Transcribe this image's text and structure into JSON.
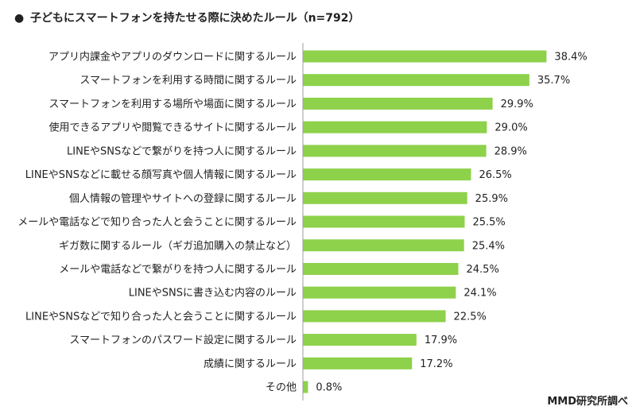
{
  "chart_data": {
    "type": "bar",
    "orientation": "horizontal",
    "title": "子どもにスマートフォンを持たせる際に決めたルール（n=792）",
    "bullet": "●",
    "source": "MMD研究所調べ",
    "value_suffix": "%",
    "bar_color": "#8ed14b",
    "axis_color": "#9e9e9e",
    "xlim": [
      0,
      100
    ],
    "categories": [
      "アプリ内課金やアプリのダウンロードに関するルール",
      "スマートフォンを利用する時間に関するルール",
      "スマートフォンを利用する場所や場面に関するルール",
      "使用できるアプリや閲覧できるサイトに関するルール",
      "LINEやSNSなどで繋がりを持つ人に関するルール",
      "LINEやSNSなどに載せる顔写真や個人情報に関するルール",
      "個人情報の管理やサイトへの登録に関するルール",
      "メールや電話などで知り合った人と会うことに関するルール",
      "ギガ数に関するルール（ギガ追加購入の禁止など）",
      "メールや電話などで繋がりを持つ人に関するルール",
      "LINEやSNSに書き込む内容のルール",
      "LINEやSNSなどで知り合った人と会うことに関するルール",
      "スマートフォンのパスワード設定に関するルール",
      "成績に関するルール",
      "その他"
    ],
    "values": [
      38.4,
      35.7,
      29.9,
      29.0,
      28.9,
      26.5,
      25.9,
      25.5,
      25.4,
      24.5,
      24.1,
      22.5,
      17.9,
      17.2,
      0.8
    ],
    "value_labels": [
      "38.4%",
      "35.7%",
      "29.9%",
      "29.0%",
      "28.9%",
      "26.5%",
      "25.9%",
      "25.5%",
      "25.4%",
      "24.5%",
      "24.1%",
      "22.5%",
      "17.9%",
      "17.2%",
      "0.8%"
    ]
  }
}
